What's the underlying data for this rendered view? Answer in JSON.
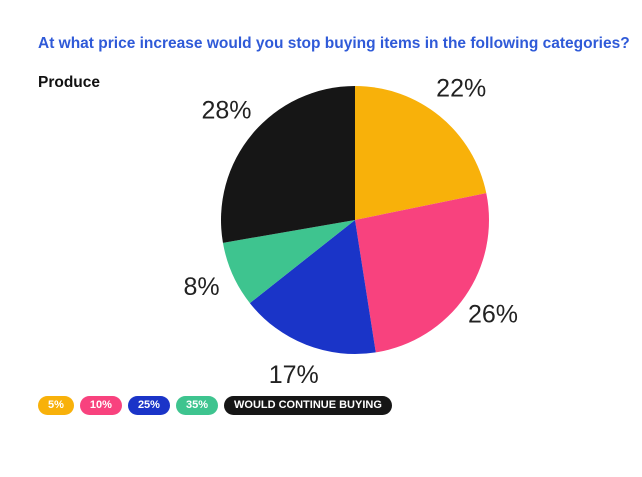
{
  "title": "At what price increase would you stop buying items in the following categories?",
  "chart_data": {
    "type": "pie",
    "subtitle": "Produce",
    "slices": [
      {
        "label": "5%",
        "value": 22,
        "display": "22%",
        "color": "#f8b10a"
      },
      {
        "label": "10%",
        "value": 26,
        "display": "26%",
        "color": "#f8427e"
      },
      {
        "label": "25%",
        "value": 17,
        "display": "17%",
        "color": "#1a34c8"
      },
      {
        "label": "35%",
        "value": 8,
        "display": "8%",
        "color": "#3ec48f"
      },
      {
        "label": "WOULD CONTINUE BUYING",
        "value": 28,
        "display": "28%",
        "color": "#161616"
      }
    ],
    "legend": {
      "position": "bottom-left",
      "items": [
        {
          "label": "5%",
          "color": "#f8b10a",
          "text_color": "#ffffff"
        },
        {
          "label": "10%",
          "color": "#f8427e",
          "text_color": "#ffffff"
        },
        {
          "label": "25%",
          "color": "#1a34c8",
          "text_color": "#ffffff"
        },
        {
          "label": "35%",
          "color": "#3ec48f",
          "text_color": "#ffffff"
        },
        {
          "label": "WOULD CONTINUE BUYING",
          "color": "#161616",
          "text_color": "#ffffff"
        }
      ]
    }
  }
}
